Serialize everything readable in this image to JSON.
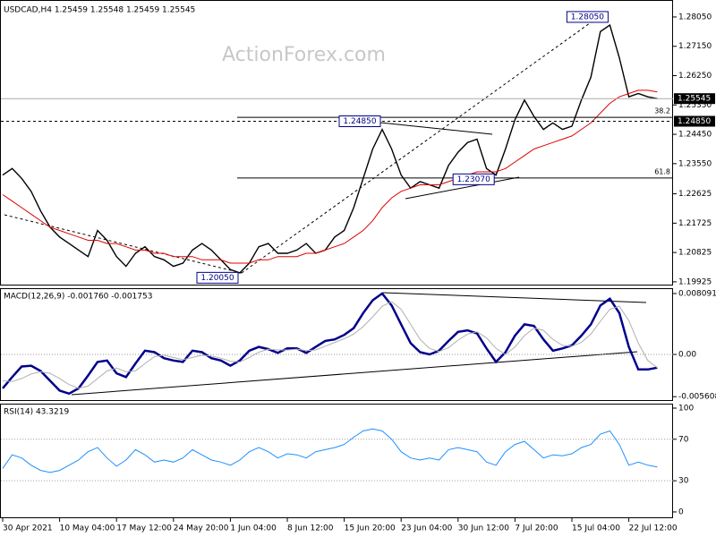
{
  "chart_data": [
    {
      "type": "price",
      "title": "USDCAD,H4  1.25459 1.25548 1.25459 1.25545",
      "watermark": "ActionForex.com",
      "categories": [
        "30 Apr 2021",
        null,
        null,
        null,
        null,
        null,
        "10 May 04:00",
        null,
        null,
        null,
        null,
        null,
        "17 May 12:00",
        null,
        null,
        null,
        null,
        null,
        "24 May 20:00",
        null,
        null,
        null,
        null,
        null,
        "1 Jun 04:00",
        null,
        null,
        null,
        null,
        null,
        "8 Jun 12:00",
        null,
        null,
        null,
        null,
        null,
        "15 Jun 20:00",
        null,
        null,
        null,
        null,
        null,
        "23 Jun 04:00",
        null,
        null,
        null,
        null,
        null,
        "30 Jun 12:00",
        null,
        null,
        null,
        null,
        null,
        "7 Jul 20:00",
        null,
        null,
        null,
        null,
        null,
        "15 Jul 04:00",
        null,
        null,
        null,
        null,
        null,
        "22 Jul 12:00",
        null,
        null,
        null
      ],
      "series": [
        {
          "name": "Close",
          "color": "#000000",
          "values": [
            1.232,
            1.234,
            1.231,
            1.227,
            1.221,
            1.216,
            1.213,
            1.211,
            1.209,
            1.207,
            1.215,
            1.212,
            1.207,
            1.204,
            1.208,
            1.21,
            1.207,
            1.206,
            1.204,
            1.205,
            1.209,
            1.211,
            1.209,
            1.206,
            1.203,
            1.202,
            1.205,
            1.21,
            1.211,
            1.208,
            1.208,
            1.209,
            1.211,
            1.208,
            1.209,
            1.213,
            1.215,
            1.222,
            1.231,
            1.24,
            1.246,
            1.24,
            1.232,
            1.228,
            1.23,
            1.229,
            1.228,
            1.235,
            1.239,
            1.242,
            1.243,
            1.234,
            1.232,
            1.24,
            1.249,
            1.255,
            1.25,
            1.246,
            1.248,
            1.246,
            1.247,
            1.255,
            1.262,
            1.276,
            1.278,
            1.268,
            1.256,
            1.257,
            1.256,
            1.25545
          ]
        },
        {
          "name": "MA",
          "color": "#e00000",
          "values": [
            1.226,
            1.224,
            1.222,
            1.22,
            1.218,
            1.216,
            1.215,
            1.214,
            1.213,
            1.212,
            1.212,
            1.211,
            1.211,
            1.21,
            1.209,
            1.209,
            1.208,
            1.208,
            1.207,
            1.207,
            1.207,
            1.206,
            1.206,
            1.206,
            1.205,
            1.205,
            1.205,
            1.206,
            1.206,
            1.207,
            1.207,
            1.207,
            1.208,
            1.208,
            1.209,
            1.21,
            1.211,
            1.213,
            1.215,
            1.218,
            1.222,
            1.225,
            1.227,
            1.228,
            1.229,
            1.229,
            1.229,
            1.23,
            1.231,
            1.232,
            1.233,
            1.233,
            1.233,
            1.234,
            1.236,
            1.238,
            1.24,
            1.241,
            1.242,
            1.243,
            1.244,
            1.246,
            1.248,
            1.251,
            1.254,
            1.256,
            1.257,
            1.258,
            1.258,
            1.2575
          ]
        }
      ],
      "ylim": [
        1.1984,
        1.2857
      ],
      "yticks": [
        {
          "value": 1.2805,
          "label": "1.28050"
        },
        {
          "value": 1.2715,
          "label": "1.27150"
        },
        {
          "value": 1.2625,
          "label": "1.26250"
        },
        {
          "value": 1.2535,
          "label": "1.25350"
        },
        {
          "value": 1.2445,
          "label": "1.24450"
        },
        {
          "value": 1.2355,
          "label": "1.23550"
        },
        {
          "value": 1.22625,
          "label": "1.22625"
        },
        {
          "value": 1.21725,
          "label": "1.21725"
        },
        {
          "value": 1.20825,
          "label": "1.20825"
        },
        {
          "value": 1.19925,
          "label": "1.19925"
        }
      ],
      "price_markers": [
        {
          "value": 1.25545,
          "label": "1.25545"
        },
        {
          "value": 1.2485,
          "label": "1.24850"
        }
      ],
      "fib_levels": [
        {
          "value": 1.2497,
          "label": "38.2"
        },
        {
          "value": 1.2311,
          "label": "61.8"
        }
      ],
      "annotations": [
        {
          "index": 64,
          "value": 1.2805,
          "label": "1.28050"
        },
        {
          "index": 40,
          "value": 1.2485,
          "label": "1.24850"
        },
        {
          "index": 52,
          "value": 1.2307,
          "label": "1.23070"
        },
        {
          "index": 25,
          "value": 1.2005,
          "label": "1.20050"
        }
      ]
    },
    {
      "type": "macd",
      "title": "MACD(12,26,9) -0.001760 -0.001753",
      "series": [
        {
          "name": "MACD",
          "color": "#00008b",
          "values": [
            -0.0045,
            -0.003,
            -0.0016,
            -0.0015,
            -0.0022,
            -0.0035,
            -0.0048,
            -0.0052,
            -0.0045,
            -0.0028,
            -0.001,
            -0.0008,
            -0.0025,
            -0.003,
            -0.0012,
            0.0005,
            0.0003,
            -0.0005,
            -0.0008,
            -0.001,
            0.0005,
            0.0003,
            -0.0005,
            -0.0008,
            -0.0015,
            -0.0008,
            0.0005,
            0.001,
            0.0007,
            0.0002,
            0.0008,
            0.0008,
            0.0002,
            0.001,
            0.0018,
            0.002,
            0.0026,
            0.0035,
            0.0055,
            0.0072,
            0.0081,
            0.0065,
            0.004,
            0.0015,
            0.0003,
            0.0,
            0.0005,
            0.0018,
            0.003,
            0.0032,
            0.0028,
            0.0008,
            -0.001,
            0.0003,
            0.0025,
            0.004,
            0.0038,
            0.002,
            0.0005,
            0.0008,
            0.0012,
            0.0025,
            0.004,
            0.0065,
            0.0074,
            0.0055,
            0.001,
            -0.002,
            -0.002,
            -0.00176
          ]
        },
        {
          "name": "Signal",
          "color": "#b0b0b0",
          "values": [
            -0.0035,
            -0.0036,
            -0.0032,
            -0.0026,
            -0.0023,
            -0.0025,
            -0.0032,
            -0.004,
            -0.0045,
            -0.0042,
            -0.0032,
            -0.0022,
            -0.0018,
            -0.0023,
            -0.0022,
            -0.0012,
            -0.0003,
            -0.0001,
            -0.0004,
            -0.0007,
            -0.0004,
            -0.0001,
            -0.0002,
            -0.0005,
            -0.0009,
            -0.001,
            -0.0004,
            0.0003,
            0.0007,
            0.0006,
            0.0006,
            0.0007,
            0.0005,
            0.0006,
            0.0011,
            0.0016,
            0.0021,
            0.0027,
            0.0037,
            0.005,
            0.0064,
            0.007,
            0.006,
            0.004,
            0.002,
            0.0008,
            0.0004,
            0.0009,
            0.0019,
            0.0027,
            0.003,
            0.0022,
            0.0008,
            0.0,
            0.001,
            0.0025,
            0.0035,
            0.0032,
            0.002,
            0.0012,
            0.0011,
            0.0016,
            0.0027,
            0.0044,
            0.006,
            0.0064,
            0.0045,
            0.0015,
            -0.0008,
            -0.001753
          ]
        }
      ],
      "ylim": [
        -0.00606,
        0.0088
      ],
      "yticks": [
        0.008091,
        {
          "value": 0,
          "label": "0.00"
        },
        -0.005608
      ]
    },
    {
      "type": "rsi",
      "title": "RSI(14) 43.3219",
      "series": [
        {
          "name": "RSI",
          "color": "#1e90ff",
          "values": [
            42,
            55,
            52,
            45,
            40,
            38,
            40,
            45,
            50,
            58,
            62,
            52,
            44,
            50,
            60,
            55,
            48,
            50,
            48,
            52,
            60,
            55,
            50,
            48,
            45,
            50,
            58,
            62,
            58,
            52,
            56,
            55,
            52,
            58,
            60,
            62,
            65,
            72,
            78,
            80,
            78,
            70,
            58,
            52,
            50,
            52,
            50,
            60,
            62,
            60,
            58,
            48,
            45,
            58,
            65,
            68,
            60,
            52,
            55,
            54,
            56,
            62,
            65,
            75,
            78,
            65,
            45,
            48,
            45,
            43.3219
          ]
        }
      ],
      "ylim": [
        -5.2,
        104.3
      ],
      "yticks": [
        100,
        70,
        30,
        0
      ]
    }
  ]
}
